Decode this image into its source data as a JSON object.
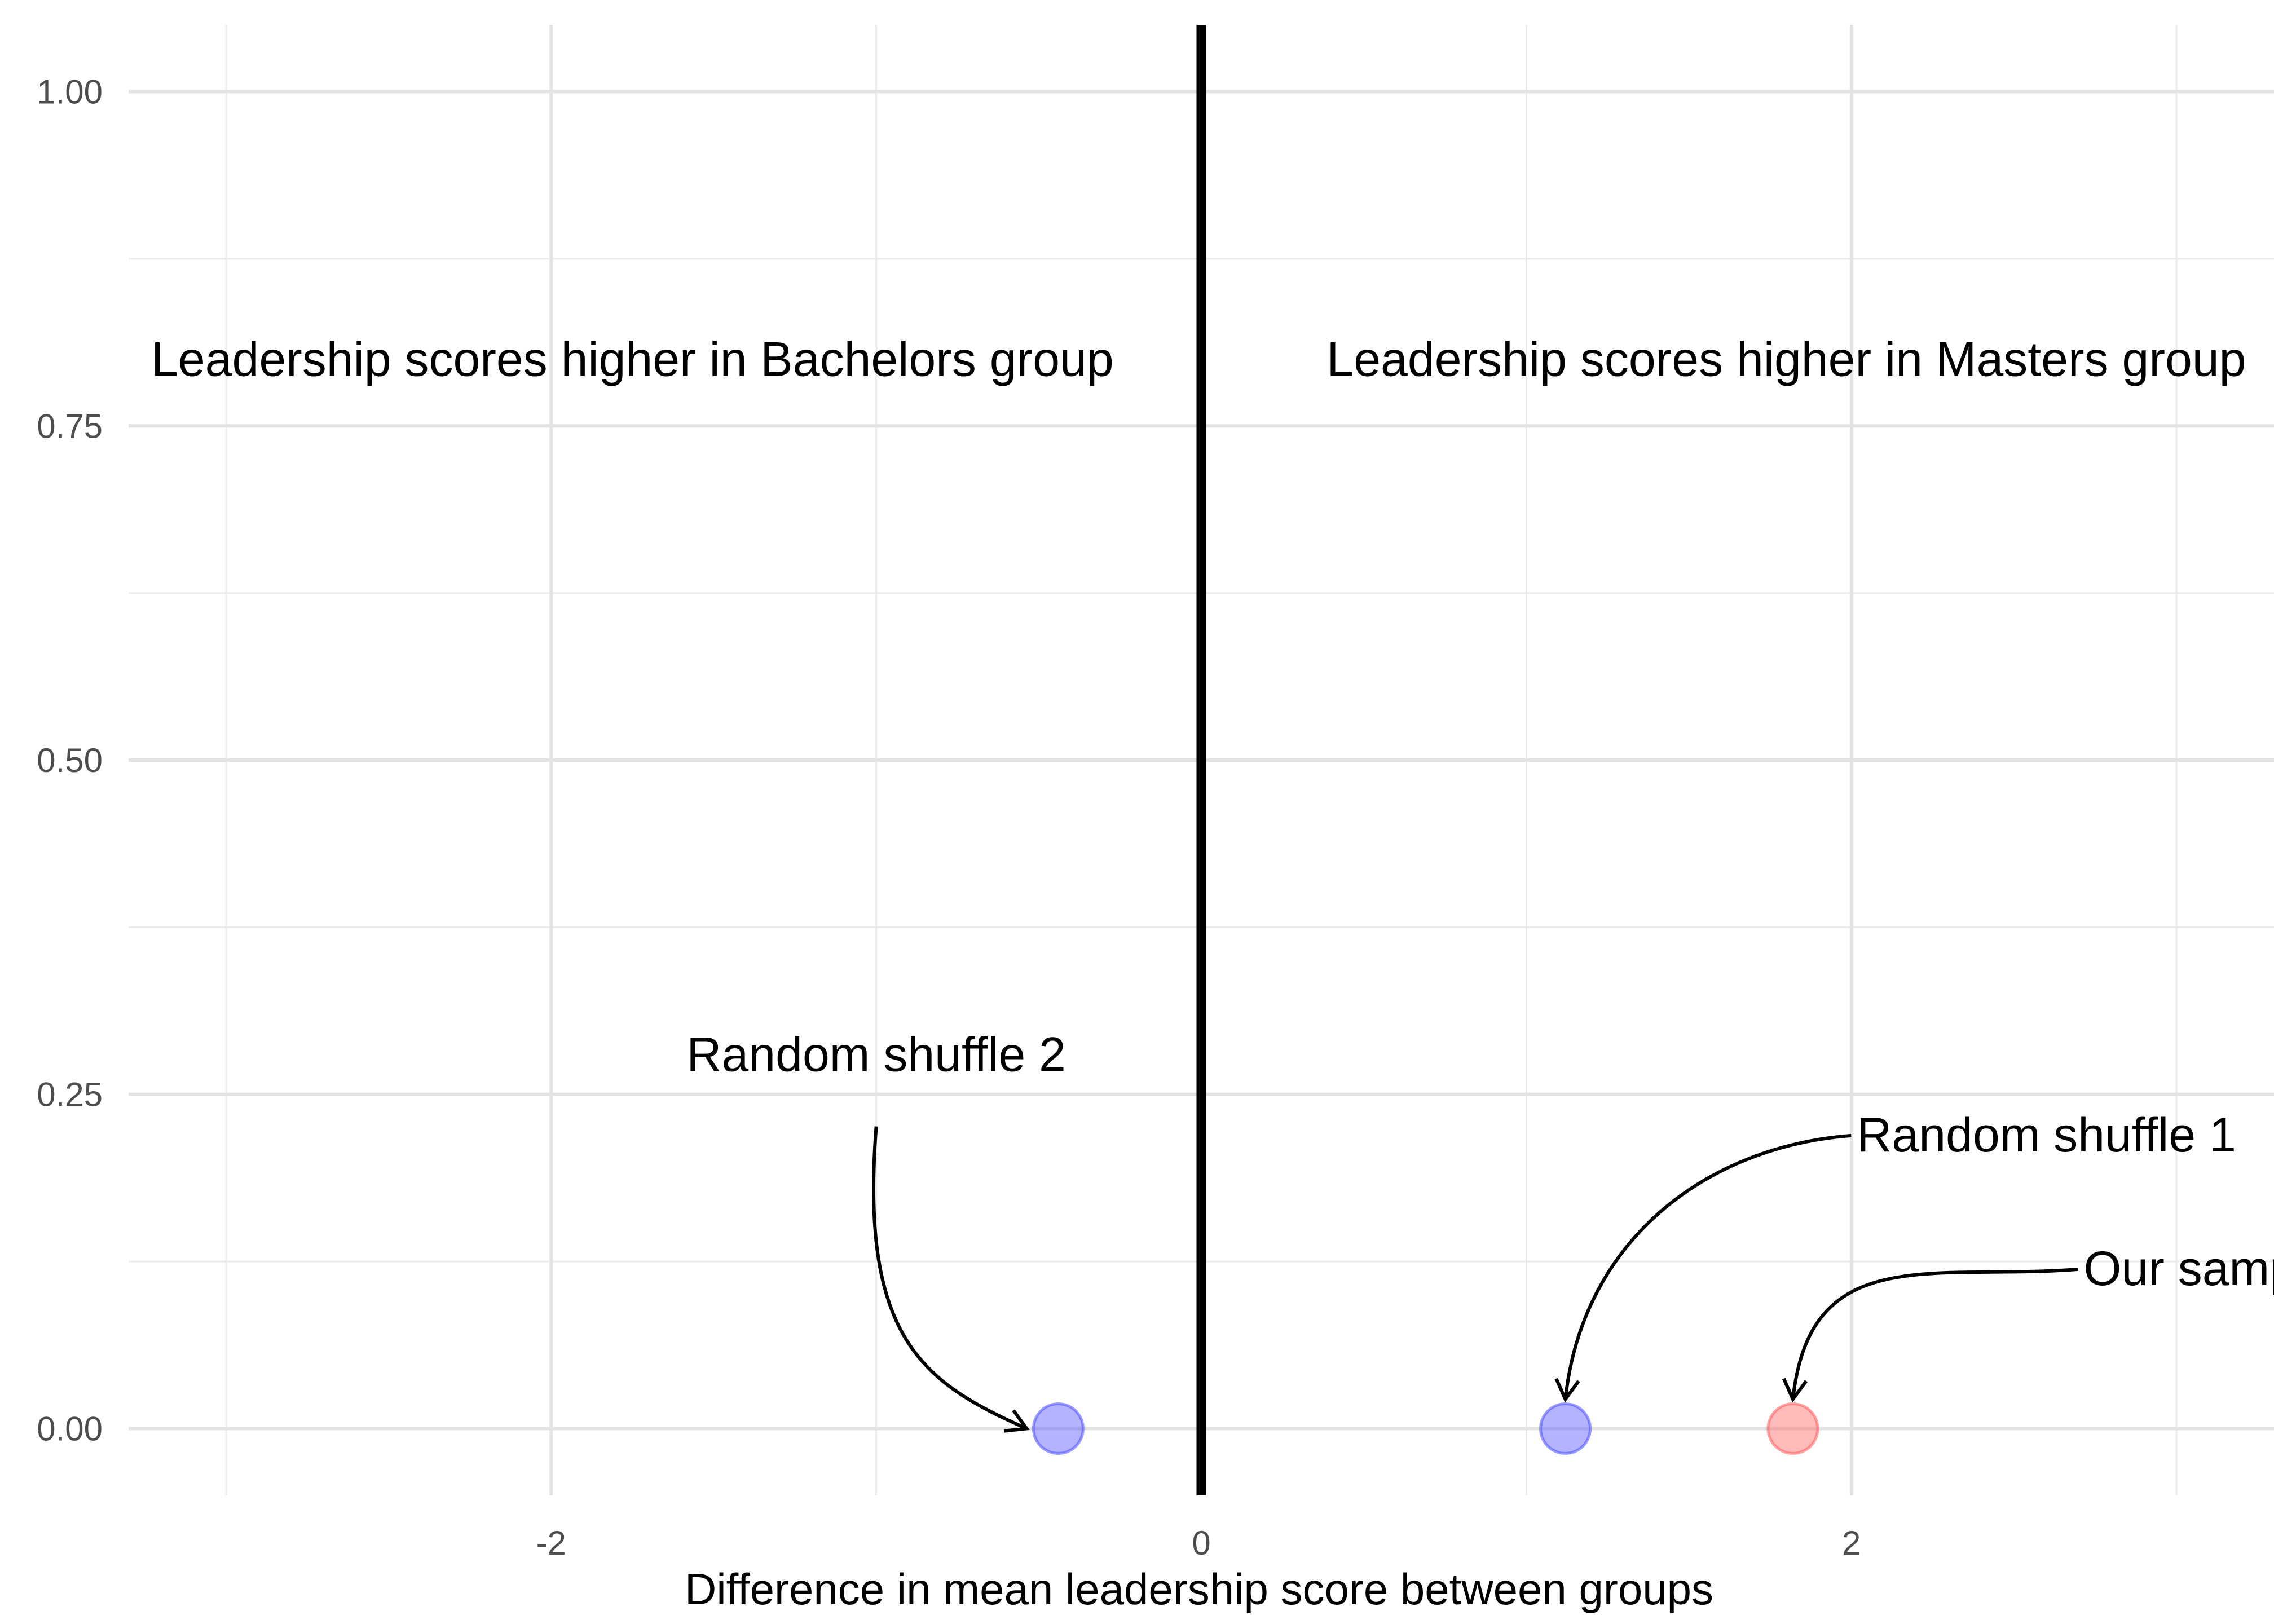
{
  "chart_data": {
    "type": "scatter",
    "title": "",
    "xlabel": "Difference in mean leadership score between groups",
    "ylabel": "",
    "xlim": [
      -3.3,
      3.3
    ],
    "ylim": [
      -0.05,
      1.05
    ],
    "grid": true,
    "x_ticks": [
      -2,
      0,
      2
    ],
    "x_tick_labels": [
      "-2",
      "0",
      "2"
    ],
    "y_ticks": [
      0,
      0.25,
      0.5,
      0.75,
      1.0
    ],
    "y_tick_labels": [
      "0.00",
      "0.25",
      "0.50",
      "0.75",
      "1.00"
    ],
    "reference_line": {
      "x": 0,
      "color": "#000000"
    },
    "points": [
      {
        "label": "Random shuffle 2",
        "x": -0.44,
        "y": 0,
        "color": "#4a4aff"
      },
      {
        "label": "Random shuffle 1",
        "x": 1.12,
        "y": 0,
        "color": "#4a4aff"
      },
      {
        "label": "Our sample",
        "x": 1.82,
        "y": 0,
        "color": "#ff5a5a"
      }
    ],
    "region_labels": [
      {
        "text": "Leadership scores higher in Bachelors group",
        "x": -1.75,
        "y": 0.8
      },
      {
        "text": "Leadership scores higher in Masters group",
        "x": 1.8,
        "y": 0.8
      }
    ],
    "annotations": [
      {
        "text": "Random shuffle 2",
        "x": -1.0,
        "y": 0.28,
        "target_point": 0
      },
      {
        "text": "Random shuffle 1",
        "x": 2.6,
        "y": 0.22,
        "target_point": 1
      },
      {
        "text": "Our sample",
        "x": 3.1,
        "y": 0.12,
        "target_point": 2
      }
    ]
  }
}
